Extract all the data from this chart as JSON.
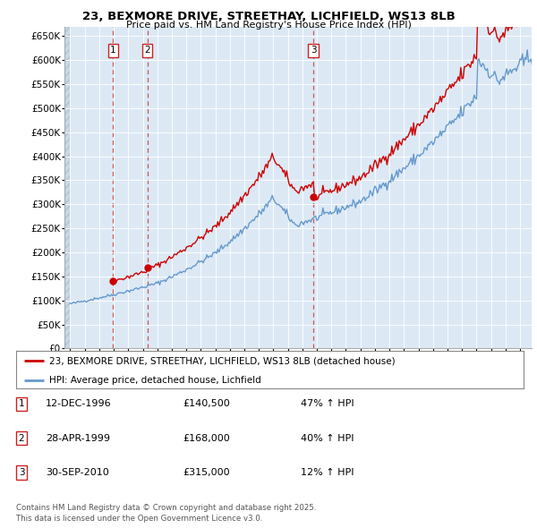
{
  "title": "23, BEXMORE DRIVE, STREETHAY, LICHFIELD, WS13 8LB",
  "subtitle": "Price paid vs. HM Land Registry's House Price Index (HPI)",
  "ylim": [
    0,
    670000
  ],
  "yticks": [
    0,
    50000,
    100000,
    150000,
    200000,
    250000,
    300000,
    350000,
    400000,
    450000,
    500000,
    550000,
    600000,
    650000
  ],
  "ytick_labels": [
    "£0",
    "£50K",
    "£100K",
    "£150K",
    "£200K",
    "£250K",
    "£300K",
    "£350K",
    "£400K",
    "£450K",
    "£500K",
    "£550K",
    "£600K",
    "£650K"
  ],
  "xlim_start": 1993.6,
  "xlim_end": 2025.8,
  "sale_color": "#cc0000",
  "hpi_color": "#6699cc",
  "vline_color": "#cc4444",
  "purchases": [
    {
      "label": "1",
      "date_num": 1996.96,
      "price": 140500
    },
    {
      "label": "2",
      "date_num": 1999.33,
      "price": 168000
    },
    {
      "label": "3",
      "date_num": 2010.75,
      "price": 315000
    }
  ],
  "legend_sale_label": "23, BEXMORE DRIVE, STREETHAY, LICHFIELD, WS13 8LB (detached house)",
  "legend_hpi_label": "HPI: Average price, detached house, Lichfield",
  "table_rows": [
    {
      "num": "1",
      "date": "12-DEC-1996",
      "price": "£140,500",
      "hpi": "47% ↑ HPI"
    },
    {
      "num": "2",
      "date": "28-APR-1999",
      "price": "£168,000",
      "hpi": "40% ↑ HPI"
    },
    {
      "num": "3",
      "date": "30-SEP-2010",
      "price": "£315,000",
      "hpi": "12% ↑ HPI"
    }
  ],
  "footer": "Contains HM Land Registry data © Crown copyright and database right 2025.\nThis data is licensed under the Open Government Licence v3.0.",
  "background_color": "#ffffff",
  "plot_bg_color": "#dce9f5"
}
